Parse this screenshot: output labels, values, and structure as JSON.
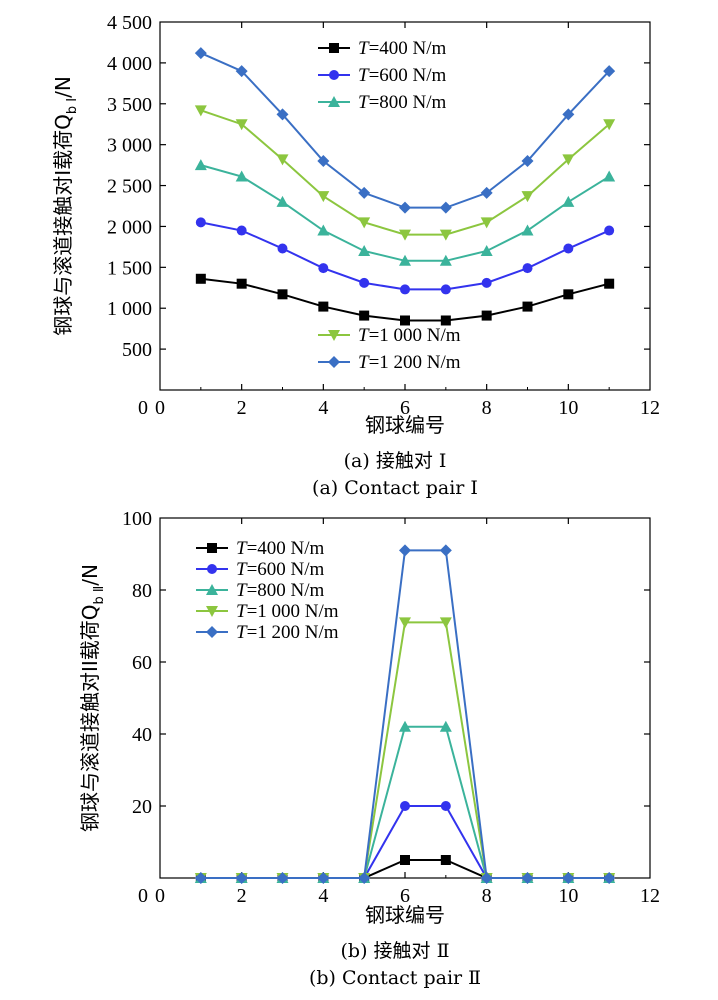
{
  "colors": {
    "T400": "#000000",
    "T600": "#3333ee",
    "T800": "#3bb39b",
    "T1000": "#8cc63f",
    "T1200": "#3a6fc4"
  },
  "chart_data": [
    {
      "type": "line",
      "xlabel": "钢球编号",
      "ylabel": "钢球与滚道接触对I载荷Q",
      "ylabel_sub": "b I",
      "ylabel_unit": "/N",
      "caption_cn": "(a) 接触对 Ⅰ",
      "caption_en": "(a) Contact pair  Ⅰ",
      "xlim": [
        0,
        12
      ],
      "ylim": [
        0,
        4500
      ],
      "x_ticks": [
        "0",
        "2",
        "4",
        "6",
        "8",
        "10",
        "12"
      ],
      "y_ticks": [
        "500",
        "1 000",
        "1 500",
        "2 000",
        "2 500",
        "3 000",
        "3 500",
        "4 000",
        "4 500"
      ],
      "y_tick_values": [
        500,
        1000,
        1500,
        2000,
        2500,
        3000,
        3500,
        4000,
        4500
      ],
      "x": [
        1,
        2,
        3,
        4,
        5,
        6,
        7,
        8,
        9,
        10,
        11
      ],
      "series": [
        {
          "key": "T400",
          "t": "T",
          "name": "=400 N/m",
          "marker": "square",
          "values": [
            1360,
            1300,
            1170,
            1020,
            910,
            850,
            850,
            910,
            1020,
            1170,
            1300
          ]
        },
        {
          "key": "T600",
          "t": "T",
          "name": "=600 N/m",
          "marker": "circle",
          "values": [
            2050,
            1950,
            1730,
            1490,
            1310,
            1230,
            1230,
            1310,
            1490,
            1730,
            1950
          ]
        },
        {
          "key": "T800",
          "t": "T",
          "name": "=800 N/m",
          "marker": "triangle-up",
          "values": [
            2750,
            2610,
            2300,
            1950,
            1700,
            1580,
            1580,
            1700,
            1950,
            2300,
            2610
          ]
        },
        {
          "key": "T1000",
          "t": "T",
          "name": "=1 000 N/m",
          "marker": "triangle-down",
          "values": [
            3420,
            3250,
            2820,
            2370,
            2050,
            1900,
            1900,
            2050,
            2370,
            2820,
            3250
          ]
        },
        {
          "key": "T1200",
          "t": "T",
          "name": "=1 200 N/m",
          "marker": "diamond",
          "values": [
            4120,
            3900,
            3370,
            2800,
            2410,
            2230,
            2230,
            2410,
            2800,
            3370,
            3900
          ]
        }
      ]
    },
    {
      "type": "line",
      "xlabel": "钢球编号",
      "ylabel": "钢球与滚道接触对II载荷Q",
      "ylabel_sub": "b Ⅱ",
      "ylabel_unit": "/N",
      "caption_cn": "(b) 接触对 Ⅱ",
      "caption_en": "(b) Contact pair  Ⅱ",
      "xlim": [
        0,
        12
      ],
      "ylim": [
        0,
        100
      ],
      "x_ticks": [
        "0",
        "2",
        "4",
        "6",
        "8",
        "10",
        "12"
      ],
      "y_ticks": [
        "20",
        "40",
        "60",
        "80",
        "100"
      ],
      "y_tick_values": [
        20,
        40,
        60,
        80,
        100
      ],
      "x": [
        1,
        2,
        3,
        4,
        5,
        6,
        7,
        8,
        9,
        10,
        11
      ],
      "series": [
        {
          "key": "T400",
          "t": "T",
          "name": "=400 N/m",
          "marker": "square",
          "values": [
            0,
            0,
            0,
            0,
            0,
            5,
            5,
            0,
            0,
            0,
            0
          ]
        },
        {
          "key": "T600",
          "t": "T",
          "name": "=600 N/m",
          "marker": "circle",
          "values": [
            0,
            0,
            0,
            0,
            0,
            20,
            20,
            0,
            0,
            0,
            0
          ]
        },
        {
          "key": "T800",
          "t": "T",
          "name": "=800 N/m",
          "marker": "triangle-up",
          "values": [
            0,
            0,
            0,
            0,
            0,
            42,
            42,
            0,
            0,
            0,
            0
          ]
        },
        {
          "key": "T1000",
          "t": "T",
          "name": "=1 000 N/m",
          "marker": "triangle-down",
          "values": [
            0,
            0,
            0,
            0,
            0,
            71,
            71,
            0,
            0,
            0,
            0
          ]
        },
        {
          "key": "T1200",
          "t": "T",
          "name": "=1 200 N/m",
          "marker": "diamond",
          "values": [
            0,
            0,
            0,
            0,
            0,
            91,
            91,
            0,
            0,
            0,
            0
          ]
        }
      ]
    }
  ]
}
